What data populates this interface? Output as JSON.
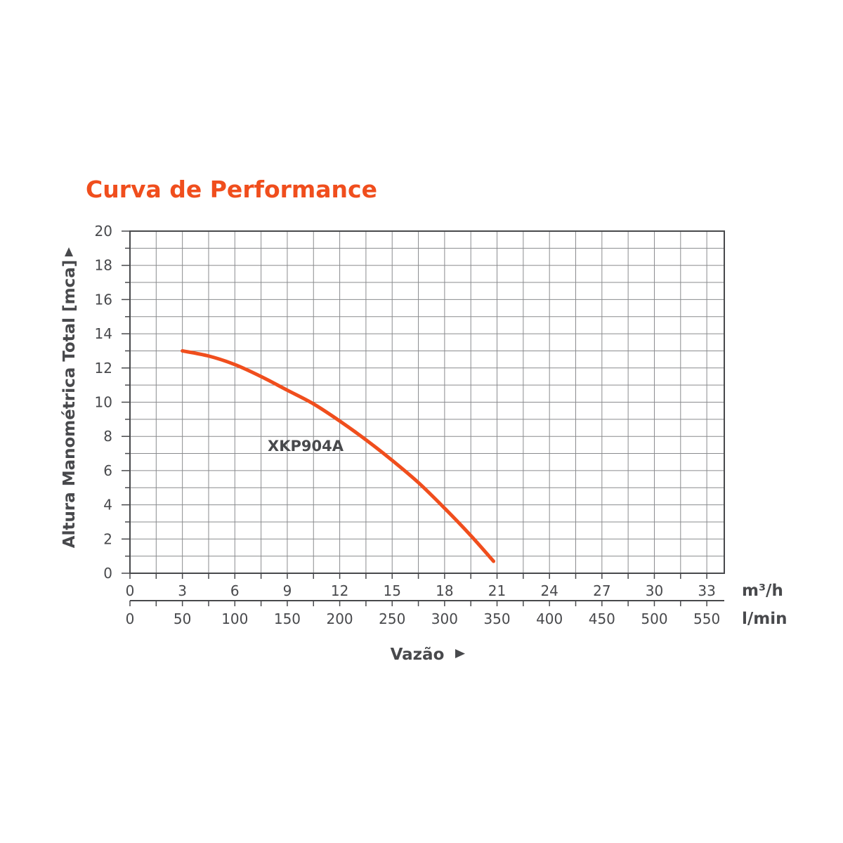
{
  "chart_data": {
    "type": "line",
    "title": "Curva de Performance",
    "ylabel": "Altura Manométrica Total [mca]",
    "xlabel": "Vazão",
    "x_unit_primary": "m³/h",
    "x_unit_secondary": "l/min",
    "xlim": [
      0,
      34
    ],
    "ylim": [
      0,
      20
    ],
    "x_ticks_primary": [
      "0",
      "3",
      "6",
      "9",
      "12",
      "15",
      "18",
      "21",
      "24",
      "27",
      "30",
      "33"
    ],
    "x_ticks_secondary": [
      "0",
      "50",
      "100",
      "150",
      "200",
      "250",
      "300",
      "350",
      "400",
      "450",
      "500",
      "550"
    ],
    "y_ticks": [
      "0",
      "2",
      "4",
      "6",
      "8",
      "10",
      "12",
      "14",
      "16",
      "18",
      "20"
    ],
    "grid": true,
    "series": [
      {
        "name": "XKP904A",
        "color": "#f04e1d",
        "x": [
          3,
          4.5,
          6,
          7.5,
          9,
          10.5,
          12,
          13.5,
          15,
          16.5,
          18,
          19.5,
          20.8
        ],
        "y": [
          13,
          12.7,
          12.2,
          11.5,
          10.7,
          9.9,
          8.9,
          7.8,
          6.6,
          5.3,
          3.8,
          2.2,
          0.7
        ]
      }
    ]
  }
}
